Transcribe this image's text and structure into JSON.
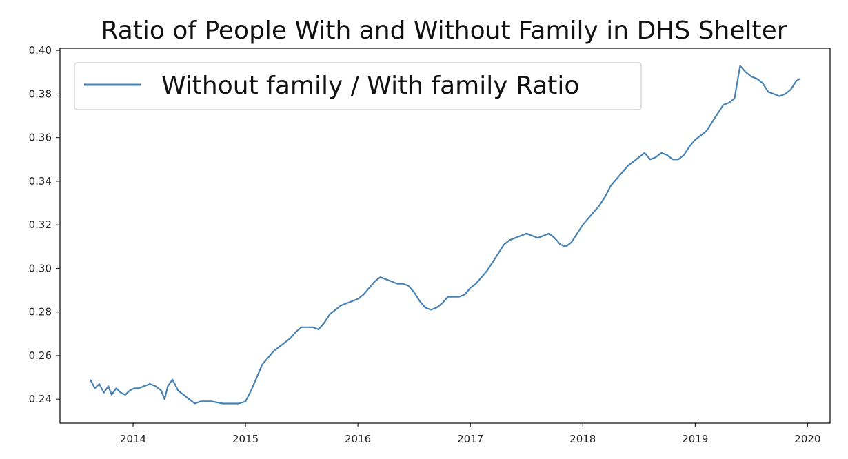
{
  "chart_data": {
    "type": "line",
    "title": "Ratio of People With and Without Family in DHS Shelter",
    "xlabel": "",
    "ylabel": "",
    "xlim": [
      2013.35,
      2020.2
    ],
    "ylim": [
      0.229,
      0.401
    ],
    "x_ticks": [
      2014,
      2015,
      2016,
      2017,
      2018,
      2019,
      2020
    ],
    "x_tick_labels": [
      "2014",
      "2015",
      "2016",
      "2017",
      "2018",
      "2019",
      "2020"
    ],
    "y_ticks": [
      0.24,
      0.26,
      0.28,
      0.3,
      0.32,
      0.34,
      0.36,
      0.38,
      0.4
    ],
    "y_tick_labels": [
      "0.24",
      "0.26",
      "0.28",
      "0.30",
      "0.32",
      "0.34",
      "0.36",
      "0.38",
      "0.40"
    ],
    "grid": false,
    "legend_position": "top-left",
    "series": [
      {
        "name": "Without family / With family Ratio",
        "color": "#4682b4",
        "x": [
          2013.62,
          2013.66,
          2013.7,
          2013.74,
          2013.78,
          2013.81,
          2013.85,
          2013.89,
          2013.93,
          2013.97,
          2014.01,
          2014.05,
          2014.1,
          2014.15,
          2014.2,
          2014.25,
          2014.28,
          2014.31,
          2014.35,
          2014.4,
          2014.45,
          2014.5,
          2014.55,
          2014.6,
          2014.7,
          2014.8,
          2014.88,
          2014.94,
          2015.0,
          2015.05,
          2015.1,
          2015.15,
          2015.2,
          2015.25,
          2015.3,
          2015.35,
          2015.4,
          2015.45,
          2015.5,
          2015.55,
          2015.6,
          2015.65,
          2015.7,
          2015.75,
          2015.8,
          2015.85,
          2015.9,
          2015.95,
          2016.0,
          2016.05,
          2016.1,
          2016.15,
          2016.2,
          2016.25,
          2016.3,
          2016.35,
          2016.4,
          2016.45,
          2016.5,
          2016.55,
          2016.6,
          2016.65,
          2016.7,
          2016.75,
          2016.8,
          2016.85,
          2016.9,
          2016.95,
          2017.0,
          2017.05,
          2017.1,
          2017.15,
          2017.2,
          2017.25,
          2017.3,
          2017.35,
          2017.4,
          2017.45,
          2017.5,
          2017.55,
          2017.6,
          2017.65,
          2017.7,
          2017.75,
          2017.8,
          2017.85,
          2017.9,
          2017.95,
          2018.0,
          2018.05,
          2018.1,
          2018.15,
          2018.2,
          2018.25,
          2018.3,
          2018.35,
          2018.4,
          2018.45,
          2018.5,
          2018.55,
          2018.6,
          2018.65,
          2018.7,
          2018.75,
          2018.8,
          2018.85,
          2018.9,
          2018.95,
          2019.0,
          2019.05,
          2019.1,
          2019.15,
          2019.2,
          2019.25,
          2019.3,
          2019.35,
          2019.4,
          2019.45,
          2019.5,
          2019.55,
          2019.6,
          2019.65,
          2019.7,
          2019.75,
          2019.8,
          2019.85,
          2019.9,
          2019.93
        ],
        "values": [
          0.249,
          0.245,
          0.247,
          0.243,
          0.246,
          0.242,
          0.245,
          0.243,
          0.242,
          0.244,
          0.245,
          0.245,
          0.246,
          0.247,
          0.246,
          0.244,
          0.24,
          0.246,
          0.249,
          0.244,
          0.242,
          0.24,
          0.238,
          0.239,
          0.239,
          0.238,
          0.238,
          0.238,
          0.239,
          0.244,
          0.25,
          0.256,
          0.259,
          0.262,
          0.264,
          0.266,
          0.268,
          0.271,
          0.273,
          0.273,
          0.273,
          0.272,
          0.275,
          0.279,
          0.281,
          0.283,
          0.284,
          0.285,
          0.286,
          0.288,
          0.291,
          0.294,
          0.296,
          0.295,
          0.294,
          0.293,
          0.293,
          0.292,
          0.289,
          0.285,
          0.282,
          0.281,
          0.282,
          0.284,
          0.287,
          0.287,
          0.287,
          0.288,
          0.291,
          0.293,
          0.296,
          0.299,
          0.303,
          0.307,
          0.311,
          0.313,
          0.314,
          0.315,
          0.316,
          0.315,
          0.314,
          0.315,
          0.316,
          0.314,
          0.311,
          0.31,
          0.312,
          0.316,
          0.32,
          0.323,
          0.326,
          0.329,
          0.333,
          0.338,
          0.341,
          0.344,
          0.347,
          0.349,
          0.351,
          0.353,
          0.35,
          0.351,
          0.353,
          0.352,
          0.35,
          0.35,
          0.352,
          0.356,
          0.359,
          0.361,
          0.363,
          0.367,
          0.371,
          0.375,
          0.376,
          0.378,
          0.393,
          0.39,
          0.388,
          0.387,
          0.385,
          0.381,
          0.38,
          0.379,
          0.38,
          0.382,
          0.386,
          0.387
        ]
      }
    ]
  }
}
